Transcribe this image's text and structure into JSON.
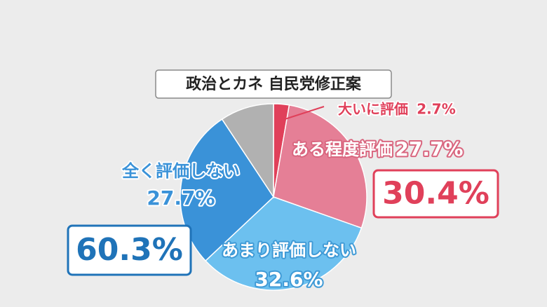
{
  "chart_data": {
    "type": "pie",
    "title": "政治とカネ 自民党修正案",
    "categories": [
      "大いに評価",
      "ある程度評価",
      "あまり評価しない",
      "全く評価しない",
      null
    ],
    "values": [
      2.7,
      27.7,
      32.6,
      27.7,
      9.3
    ],
    "value_labels": [
      "2.7%",
      "27.7%",
      "32.6%",
      "27.7%",
      null
    ],
    "colors": [
      "#e0405a",
      "#e57f96",
      "#6cc0ef",
      "#3a92d8",
      "#b1b1b1"
    ],
    "annotations": [
      {
        "value": 30.4,
        "label": "30.4%",
        "color": "#e0405a"
      },
      {
        "value": 60.3,
        "label": "60.3%",
        "color": "#1f73b8"
      }
    ]
  }
}
